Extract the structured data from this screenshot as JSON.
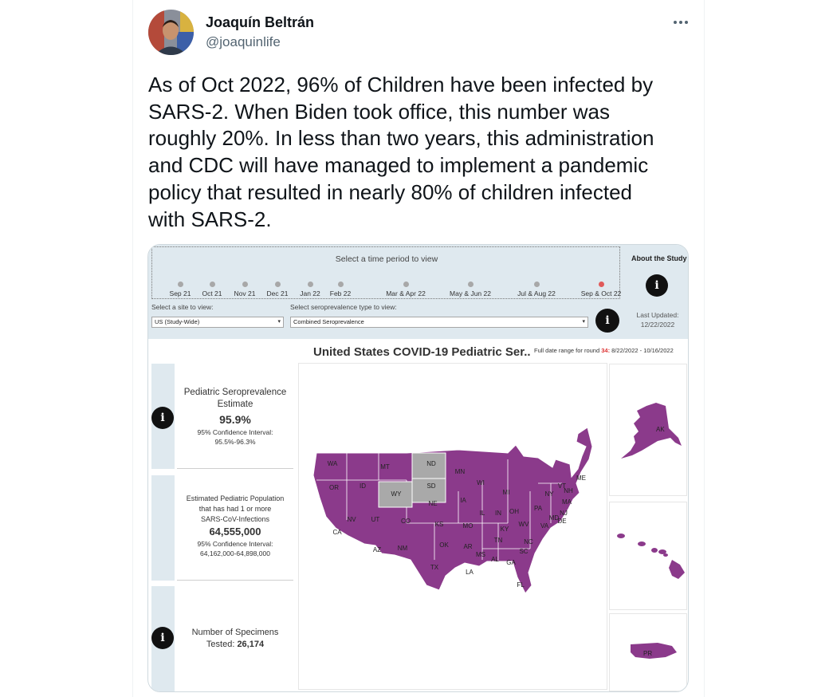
{
  "tweet": {
    "author_name": "Joaquín Beltrán",
    "handle": "@joaquinlife",
    "more_icon": "more-dots-icon",
    "text": "As of Oct 2022, 96% of Children have been infected by\nSARS-2. When Biden took office, this number was\nroughly 20%. In less than two years, this administration\nand CDC will have managed to implement a pandemic\npolicy that resulted in nearly 80% of children infected\nwith SARS-2."
  },
  "dashboard": {
    "time_selector_title": "Select a time period to view",
    "time_periods": [
      {
        "label": "Sep 21",
        "active": false
      },
      {
        "label": "Oct 21",
        "active": false
      },
      {
        "label": "Nov 21",
        "active": false
      },
      {
        "label": "Dec 21",
        "active": false
      },
      {
        "label": "Jan 22",
        "active": false
      },
      {
        "label": "Feb 22",
        "active": false
      },
      {
        "label": "Mar & Apr 22",
        "active": false
      },
      {
        "label": "May & Jun 22",
        "active": false
      },
      {
        "label": "Jul & Aug 22",
        "active": false
      },
      {
        "label": "Sep & Oct 22",
        "active": true
      }
    ],
    "about_label": "About the Study",
    "site_label": "Select a site to view:",
    "site_value": "US (Study-Wide)",
    "type_label": "Select seroprevalence type to view:",
    "type_value": "Combined Seroprevalence",
    "last_updated_label": "Last Updated:",
    "last_updated_value": "12/22/2022",
    "title": "United States  COVID-19 Pediatric Ser..",
    "range_prefix": "Full date range for round",
    "round": "34:",
    "range_value": "8/22/2022 - 10/16/2022",
    "info_glyph": "i",
    "panels": {
      "estimate": {
        "line1": "Pediatric Seroprevalence",
        "line2": "Estimate",
        "value": "95.9%",
        "ci_label": "95% Confidence Interval:",
        "ci_value": "95.5%-96.3%"
      },
      "population": {
        "line1": "Estimated Pediatric Population",
        "line2": "that has had 1 or more",
        "line3": "SARS-CoV-Infections",
        "value": "64,555,000",
        "ci_label": "95% Confidence Interval:",
        "ci_value": "64,162,000-64,898,000"
      },
      "specimens": {
        "line1": "Number of Specimens",
        "line2_prefix": "Tested: ",
        "value": "26,174"
      }
    },
    "map": {
      "fill_color": "#8b3a8b",
      "no_data_color": "#a9a9a9",
      "states": [
        "WA",
        "MT",
        "ND",
        "MN",
        "OR",
        "ID",
        "SD",
        "WI",
        "MI",
        "NY",
        "VT",
        "NH",
        "ME",
        "MA",
        "WY",
        "IA",
        "PA",
        "NE",
        "OH",
        "IN",
        "IL",
        "NJ",
        "NV",
        "UT",
        "CO",
        "MD",
        "DE",
        "WV",
        "VA",
        "CA",
        "KS",
        "MO",
        "KY",
        "NC",
        "TN",
        "OK",
        "AR",
        "SC",
        "AZ",
        "NM",
        "MS",
        "AL",
        "GA",
        "TX",
        "LA",
        "FL"
      ],
      "gray_states": [
        "ND",
        "SD",
        "WY"
      ],
      "insets": [
        "AK",
        "PR"
      ]
    }
  }
}
